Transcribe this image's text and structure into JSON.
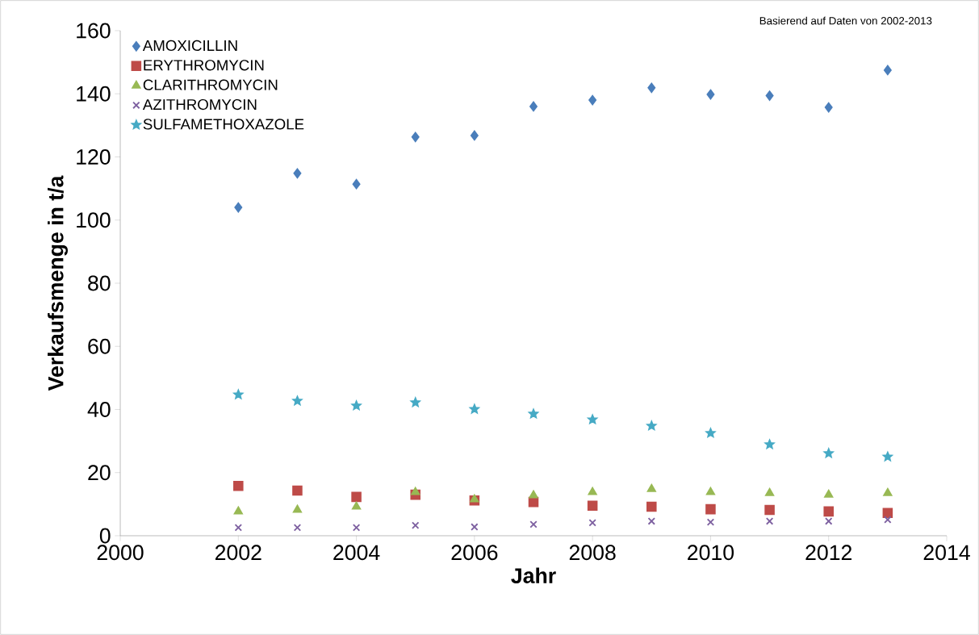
{
  "chart_data": {
    "type": "scatter",
    "xlabel": "Jahr",
    "ylabel": "Verkaufsmenge in t/a",
    "annotations": [
      "Basierend auf Daten von 2002-2013"
    ],
    "x": [
      2002,
      2003,
      2004,
      2005,
      2006,
      2007,
      2008,
      2009,
      2010,
      2011,
      2012,
      2013
    ],
    "series": [
      {
        "name": "AMOXICILLIN",
        "color": "#4a7ebb",
        "marker": "diamond",
        "values": [
          104.0,
          114.8,
          111.4,
          126.3,
          126.8,
          136.0,
          138.0,
          141.9,
          139.8,
          139.4,
          135.7,
          147.5
        ]
      },
      {
        "name": "ERYTHROMYCIN",
        "color": "#be4b48",
        "marker": "square",
        "values": [
          15.8,
          14.3,
          12.3,
          13.0,
          11.2,
          10.7,
          9.5,
          9.2,
          8.4,
          8.2,
          7.7,
          7.2
        ]
      },
      {
        "name": "CLARITHROMYCIN",
        "color": "#98b954",
        "marker": "triangle",
        "values": [
          7.7,
          8.2,
          9.2,
          13.8,
          11.5,
          12.8,
          13.8,
          14.8,
          13.8,
          13.5,
          13.0,
          13.5
        ]
      },
      {
        "name": "AZITHROMYCIN",
        "color": "#7d60a0",
        "marker": "cross",
        "values": [
          2.6,
          2.6,
          2.6,
          3.3,
          2.8,
          3.6,
          4.1,
          4.6,
          4.3,
          4.6,
          4.6,
          5.1
        ]
      },
      {
        "name": "SULFAMETHOXAZOLE",
        "color": "#46aac5",
        "marker": "star",
        "values": [
          44.7,
          42.7,
          41.2,
          42.2,
          40.1,
          38.6,
          36.8,
          34.8,
          32.5,
          28.9,
          26.1,
          25.0
        ]
      }
    ],
    "xlim": [
      2000,
      2014
    ],
    "ylim": [
      0,
      160
    ],
    "xticks": [
      2000,
      2002,
      2004,
      2006,
      2008,
      2010,
      2012,
      2014
    ],
    "yticks": [
      0,
      20,
      40,
      60,
      80,
      100,
      120,
      140,
      160
    ],
    "legend": "top left"
  }
}
